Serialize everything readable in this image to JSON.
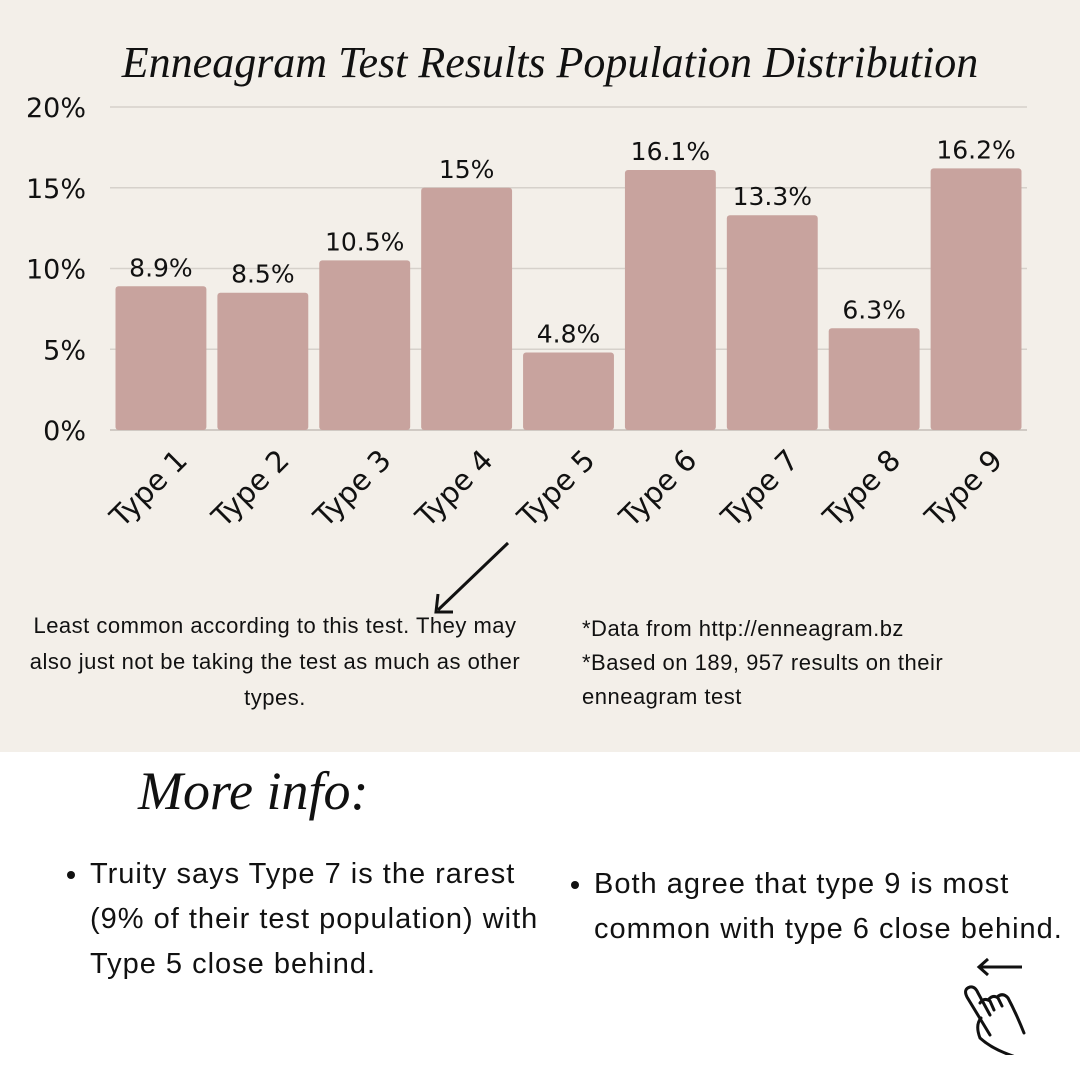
{
  "chart_data": {
    "type": "bar",
    "title": "Enneagram Test Results Population Distribution",
    "categories": [
      "Type 1",
      "Type 2",
      "Type 3",
      "Type 4",
      "Type 5",
      "Type 6",
      "Type 7",
      "Type 8",
      "Type 9"
    ],
    "values": [
      8.9,
      8.5,
      10.5,
      15,
      4.8,
      16.1,
      13.3,
      6.3,
      16.2
    ],
    "data_labels": [
      "8.9%",
      "8.5%",
      "10.5%",
      "15%",
      "4.8%",
      "16.1%",
      "13.3%",
      "6.3%",
      "16.2%"
    ],
    "ylim": [
      0,
      20
    ],
    "yticks": [
      "0%",
      "5%",
      "10%",
      "15%",
      "20%"
    ],
    "ytick_values": [
      0,
      5,
      10,
      15,
      20
    ],
    "grid": true,
    "xlabel": "",
    "ylabel": "",
    "bar_color": "#c8a39e",
    "background_color": "#f3efe9"
  },
  "notes": {
    "least_common": "Least common according to this test. They may also just not be taking the test as much as other types.",
    "source_1": "*Data from http://enneagram.bz",
    "source_2": "*Based on 189, 957 results on their enneagram test"
  },
  "more_info": {
    "heading": "More info:",
    "bullets": [
      "Truity says Type 7 is the rarest (9% of their test population)  with Type 5 close behind.",
      "Both agree that type 9 is most common with type 6 close behind."
    ]
  },
  "icons": [
    "arrow-icon",
    "left-arrow-icon",
    "pointing-hand-icon"
  ]
}
